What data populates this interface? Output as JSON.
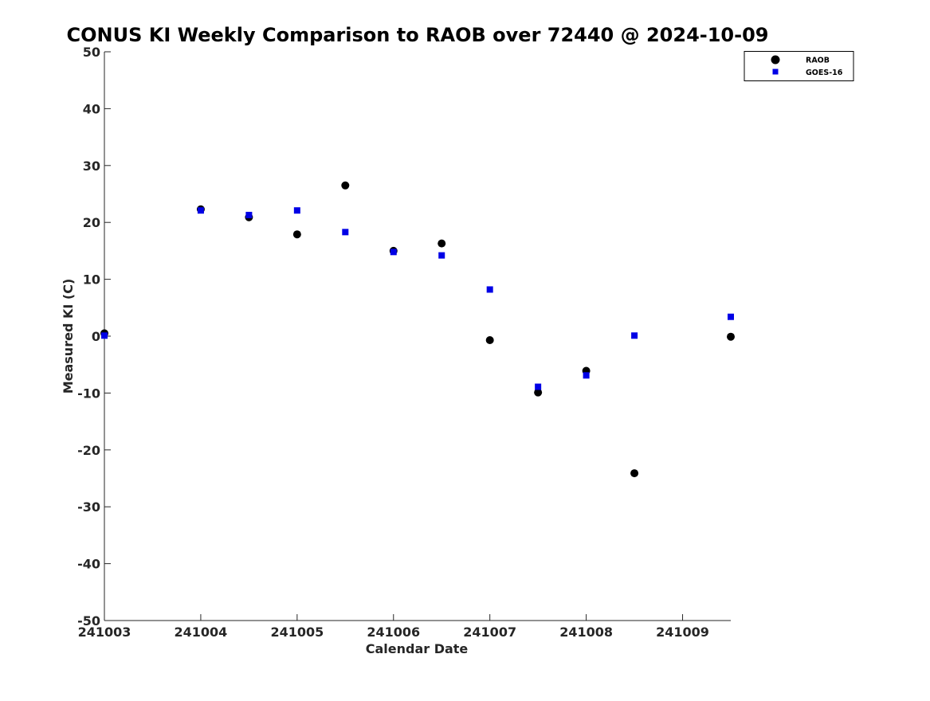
{
  "chart_data": {
    "type": "scatter",
    "title": "CONUS KI Weekly Comparison to RAOB over 72440 @ 2024-10-09",
    "xlabel": "Calendar Date",
    "ylabel": "Measured KI (C)",
    "xlim": [
      "2024-10-03 00:00",
      "2024-10-09 12:00"
    ],
    "ylim": [
      -50,
      50
    ],
    "x_ticks": [
      "241003",
      "241004",
      "241005",
      "241006",
      "241007",
      "241008",
      "241009"
    ],
    "y_ticks": [
      50,
      40,
      30,
      20,
      10,
      0,
      -10,
      -20,
      -30,
      -40,
      -50
    ],
    "grid": false,
    "legend_position": "top-right",
    "series": [
      {
        "name": "RAOB",
        "marker": "circle",
        "color": "#000000",
        "points": [
          {
            "x": "2024-10-03 00:00",
            "y": 0.5
          },
          {
            "x": "2024-10-04 00:00",
            "y": 22.3
          },
          {
            "x": "2024-10-04 12:00",
            "y": 20.9
          },
          {
            "x": "2024-10-05 00:00",
            "y": 17.9
          },
          {
            "x": "2024-10-05 12:00",
            "y": 26.5
          },
          {
            "x": "2024-10-06 00:00",
            "y": 15.0
          },
          {
            "x": "2024-10-06 12:00",
            "y": 16.3
          },
          {
            "x": "2024-10-07 00:00",
            "y": -0.7
          },
          {
            "x": "2024-10-07 12:00",
            "y": -9.9
          },
          {
            "x": "2024-10-08 00:00",
            "y": -6.1
          },
          {
            "x": "2024-10-08 12:00",
            "y": -24.1
          },
          {
            "x": "2024-10-09 12:00",
            "y": -0.1
          }
        ]
      },
      {
        "name": "GOES-16",
        "marker": "square",
        "color": "#0000e6",
        "points": [
          {
            "x": "2024-10-03 00:00",
            "y": 0.1
          },
          {
            "x": "2024-10-04 00:00",
            "y": 22.1
          },
          {
            "x": "2024-10-04 12:00",
            "y": 21.3
          },
          {
            "x": "2024-10-05 00:00",
            "y": 22.1
          },
          {
            "x": "2024-10-05 12:00",
            "y": 18.3
          },
          {
            "x": "2024-10-06 00:00",
            "y": 14.8
          },
          {
            "x": "2024-10-06 12:00",
            "y": 14.2
          },
          {
            "x": "2024-10-07 00:00",
            "y": 8.2
          },
          {
            "x": "2024-10-07 12:00",
            "y": -8.9
          },
          {
            "x": "2024-10-08 00:00",
            "y": -6.9
          },
          {
            "x": "2024-10-08 12:00",
            "y": 0.1
          },
          {
            "x": "2024-10-09 12:00",
            "y": 3.4
          }
        ]
      }
    ]
  }
}
